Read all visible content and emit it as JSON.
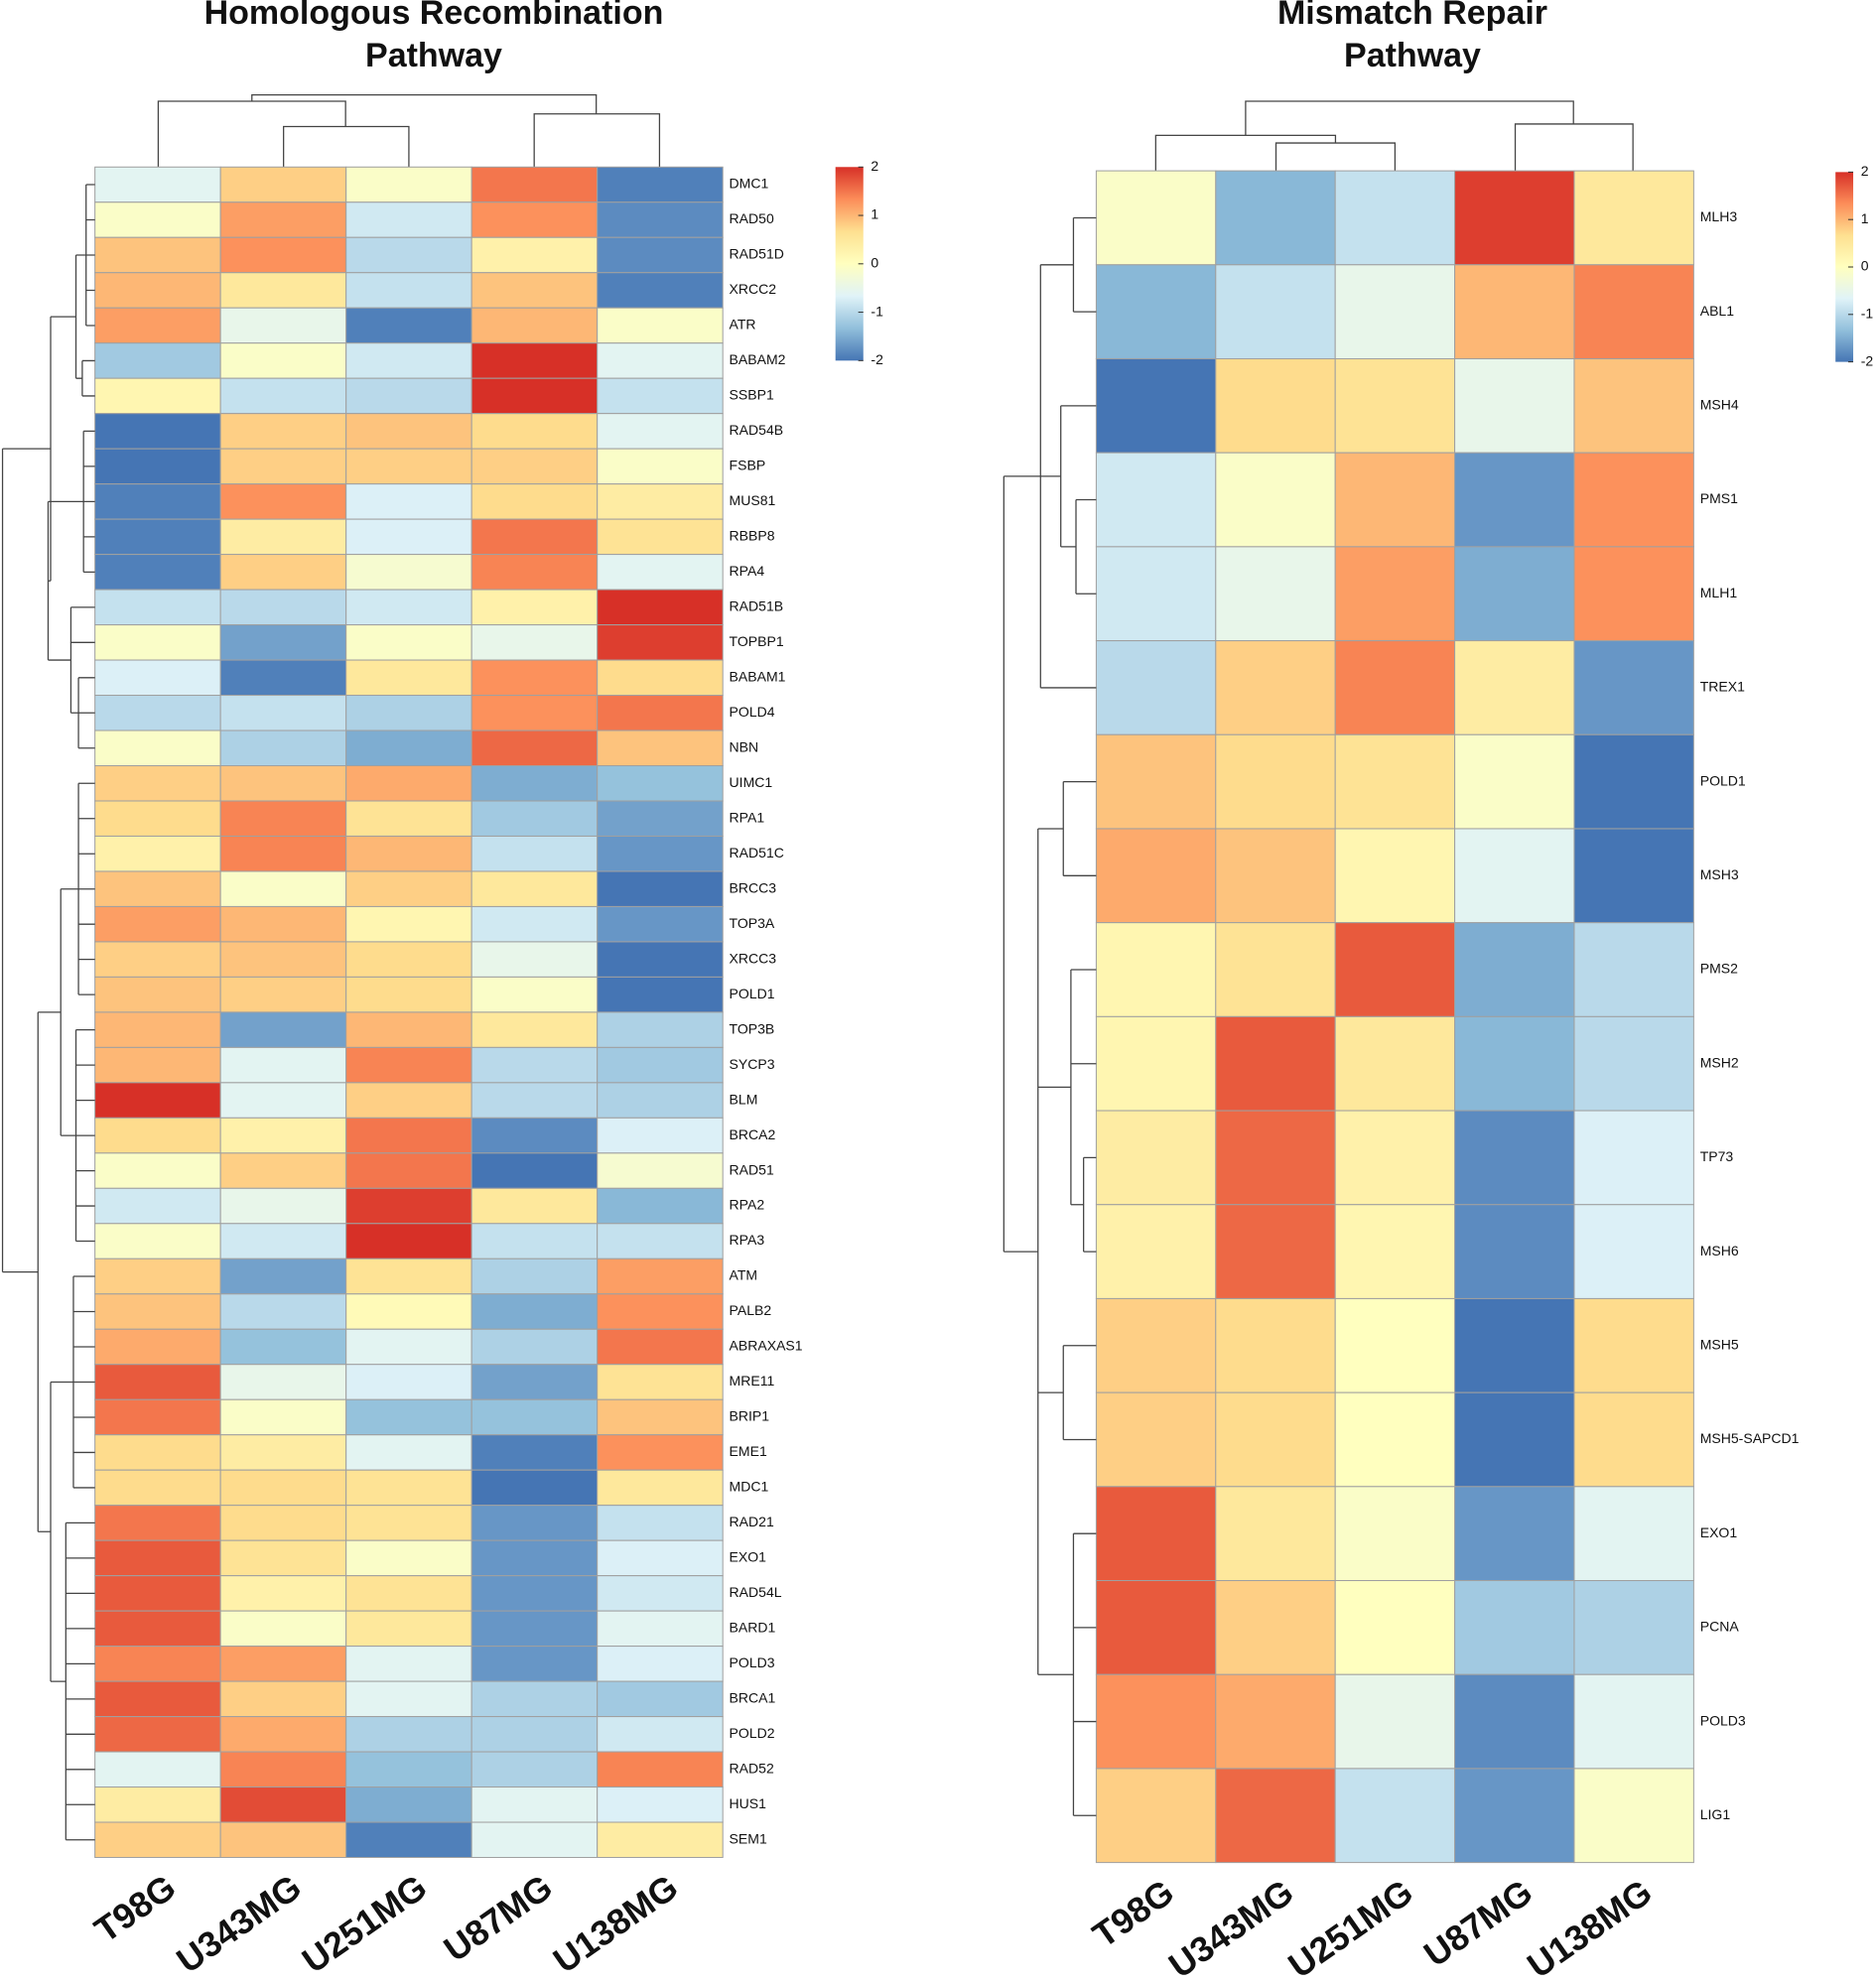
{
  "chart_data": [
    {
      "type": "heatmap",
      "title": "Homologous Recombination Pathway",
      "columns": [
        "T98G",
        "U343MG",
        "U251MG",
        "U87MG",
        "U138MG"
      ],
      "rows": [
        "DMC1",
        "RAD50",
        "RAD51D",
        "XRCC2",
        "ATR",
        "BABAM2",
        "SSBP1",
        "RAD54B",
        "FSBP",
        "MUS81",
        "RBBP8",
        "RPA4",
        "RAD51B",
        "TOPBP1",
        "BABAM1",
        "POLD4",
        "NBN",
        "UIMC1",
        "RPA1",
        "RAD51C",
        "BRCC3",
        "TOP3A",
        "XRCC3",
        "POLD1",
        "TOP3B",
        "SYCP3",
        "BLM",
        "BRCA2",
        "RAD51",
        "RPA2",
        "RPA3",
        "ATM",
        "PALB2",
        "ABRAXAS1",
        "MRE11",
        "BRIP1",
        "EME1",
        "MDC1",
        "RAD21",
        "EXO1",
        "RAD54L",
        "BARD1",
        "POLD3",
        "BRCA1",
        "POLD2",
        "RAD52",
        "HUS1",
        "SEM1"
      ],
      "values": [
        [
          -0.6,
          0.8,
          -0.1,
          1.5,
          -1.9
        ],
        [
          -0.1,
          1.2,
          -0.8,
          1.3,
          -1.8
        ],
        [
          0.9,
          1.3,
          -1.0,
          0.3,
          -1.8
        ],
        [
          1.0,
          0.5,
          -0.9,
          0.9,
          -1.9
        ],
        [
          1.2,
          -0.5,
          -1.9,
          1.0,
          -0.1
        ],
        [
          -1.2,
          -0.1,
          -0.8,
          2.0,
          -0.6
        ],
        [
          0.2,
          -0.9,
          -1.0,
          2.0,
          -0.9
        ],
        [
          -2.1,
          0.8,
          0.9,
          0.7,
          -0.6
        ],
        [
          -2.3,
          0.8,
          0.8,
          0.8,
          -0.1
        ],
        [
          -1.9,
          1.3,
          -0.7,
          0.7,
          0.4
        ],
        [
          -1.9,
          0.4,
          -0.7,
          1.5,
          0.6
        ],
        [
          -1.9,
          0.8,
          -0.2,
          1.4,
          -0.6
        ],
        [
          -0.9,
          -1.0,
          -0.8,
          0.3,
          2.1
        ],
        [
          -0.1,
          -1.6,
          -0.1,
          -0.5,
          1.9
        ],
        [
          -0.7,
          -1.9,
          0.5,
          1.3,
          0.7
        ],
        [
          -1.0,
          -0.9,
          -1.1,
          1.3,
          1.5
        ],
        [
          -0.1,
          -1.1,
          -1.5,
          1.6,
          0.9
        ],
        [
          0.8,
          0.9,
          1.1,
          -1.5,
          -1.3
        ],
        [
          0.7,
          1.4,
          0.6,
          -1.2,
          -1.6
        ],
        [
          0.3,
          1.4,
          1.0,
          -0.9,
          -1.7
        ],
        [
          0.9,
          -0.1,
          0.8,
          0.5,
          -2.3
        ],
        [
          1.2,
          1.0,
          0.2,
          -0.8,
          -1.7
        ],
        [
          0.8,
          0.9,
          0.7,
          -0.5,
          -2.1
        ],
        [
          0.9,
          0.8,
          0.7,
          -0.1,
          -2.3
        ],
        [
          1.0,
          -1.6,
          1.0,
          0.5,
          -1.1
        ],
        [
          1.0,
          -0.6,
          1.4,
          -1.0,
          -1.2
        ],
        [
          2.0,
          -0.6,
          0.8,
          -1.0,
          -1.1
        ],
        [
          0.7,
          0.3,
          1.5,
          -1.8,
          -0.7
        ],
        [
          -0.1,
          0.8,
          1.5,
          -2.0,
          -0.2
        ],
        [
          -0.8,
          -0.5,
          1.9,
          0.5,
          -1.4
        ],
        [
          -0.1,
          -0.8,
          2.2,
          -0.9,
          -0.9
        ],
        [
          0.8,
          -1.6,
          0.6,
          -1.1,
          1.2
        ],
        [
          0.9,
          -1.0,
          0.1,
          -1.5,
          1.3
        ],
        [
          1.1,
          -1.3,
          -0.6,
          -1.1,
          1.5
        ],
        [
          1.7,
          -0.5,
          -0.7,
          -1.6,
          0.6
        ],
        [
          1.5,
          -0.1,
          -1.3,
          -1.3,
          0.9
        ],
        [
          0.7,
          0.4,
          -0.6,
          -1.9,
          1.3
        ],
        [
          0.7,
          0.7,
          0.6,
          -2.3,
          0.5
        ],
        [
          1.5,
          0.7,
          0.6,
          -1.7,
          -0.9
        ],
        [
          1.7,
          0.6,
          -0.1,
          -1.7,
          -0.7
        ],
        [
          1.7,
          0.3,
          0.6,
          -1.7,
          -0.8
        ],
        [
          1.7,
          -0.1,
          0.5,
          -1.7,
          -0.6
        ],
        [
          1.4,
          1.2,
          -0.6,
          -1.7,
          -0.7
        ],
        [
          1.7,
          0.8,
          -0.6,
          -1.1,
          -1.2
        ],
        [
          1.6,
          1.1,
          -1.1,
          -1.1,
          -0.8
        ],
        [
          -0.6,
          1.4,
          -1.3,
          -1.1,
          1.4
        ],
        [
          0.4,
          1.8,
          -1.5,
          -0.6,
          -0.7
        ],
        [
          0.8,
          0.9,
          -1.9,
          -0.6,
          0.4
        ]
      ],
      "zlim": [
        -2,
        2
      ],
      "colorbar_ticks": [
        2,
        1,
        0,
        -1,
        -2
      ],
      "colors": [
        "#4575B4",
        "#91BFDB",
        "#E0F3F8",
        "#FFFFBF",
        "#FEE090",
        "#FC8D59",
        "#D73027"
      ]
    },
    {
      "type": "heatmap",
      "title": "Mismatch Repair Pathway",
      "columns": [
        "T98G",
        "U343MG",
        "U251MG",
        "U87MG",
        "U138MG"
      ],
      "rows": [
        "MLH3",
        "ABL1",
        "MSH4",
        "PMS1",
        "MLH1",
        "TREX1",
        "POLD1",
        "MSH3",
        "PMS2",
        "MSH2",
        "TP73",
        "MSH6",
        "MSH5",
        "MSH5-SAPCD1",
        "EXO1",
        "PCNA",
        "POLD3",
        "LIG1"
      ],
      "values": [
        [
          -0.1,
          -1.4,
          -0.9,
          1.9,
          0.5
        ],
        [
          -1.4,
          -0.9,
          -0.5,
          1.0,
          1.4
        ],
        [
          -2.0,
          0.7,
          0.6,
          -0.5,
          0.9
        ],
        [
          -0.8,
          -0.1,
          1.0,
          -1.7,
          1.3
        ],
        [
          -0.8,
          -0.5,
          1.2,
          -1.5,
          1.3
        ],
        [
          -1.0,
          0.8,
          1.4,
          0.4,
          -1.7
        ],
        [
          0.9,
          0.7,
          0.6,
          -0.1,
          -2.3
        ],
        [
          1.1,
          0.9,
          0.2,
          -0.6,
          -2.1
        ],
        [
          0.2,
          0.6,
          1.7,
          -1.5,
          -1.0
        ],
        [
          0.2,
          1.7,
          0.5,
          -1.4,
          -1.0
        ],
        [
          0.4,
          1.6,
          0.3,
          -1.8,
          -0.7
        ],
        [
          0.3,
          1.6,
          0.2,
          -1.8,
          -0.7
        ],
        [
          0.8,
          0.7,
          0.0,
          -2.3,
          0.7
        ],
        [
          0.8,
          0.7,
          0.0,
          -2.3,
          0.7
        ],
        [
          1.7,
          0.5,
          -0.1,
          -1.7,
          -0.6
        ],
        [
          1.7,
          0.8,
          0.0,
          -1.2,
          -1.1
        ],
        [
          1.3,
          1.1,
          -0.5,
          -1.8,
          -0.6
        ],
        [
          0.8,
          1.6,
          -0.9,
          -1.7,
          -0.1
        ]
      ],
      "zlim": [
        -2,
        2
      ],
      "colorbar_ticks": [
        2,
        1,
        0,
        -1,
        -2
      ],
      "colors": [
        "#4575B4",
        "#91BFDB",
        "#E0F3F8",
        "#FFFFBF",
        "#FEE090",
        "#FC8D59",
        "#D73027"
      ]
    }
  ]
}
